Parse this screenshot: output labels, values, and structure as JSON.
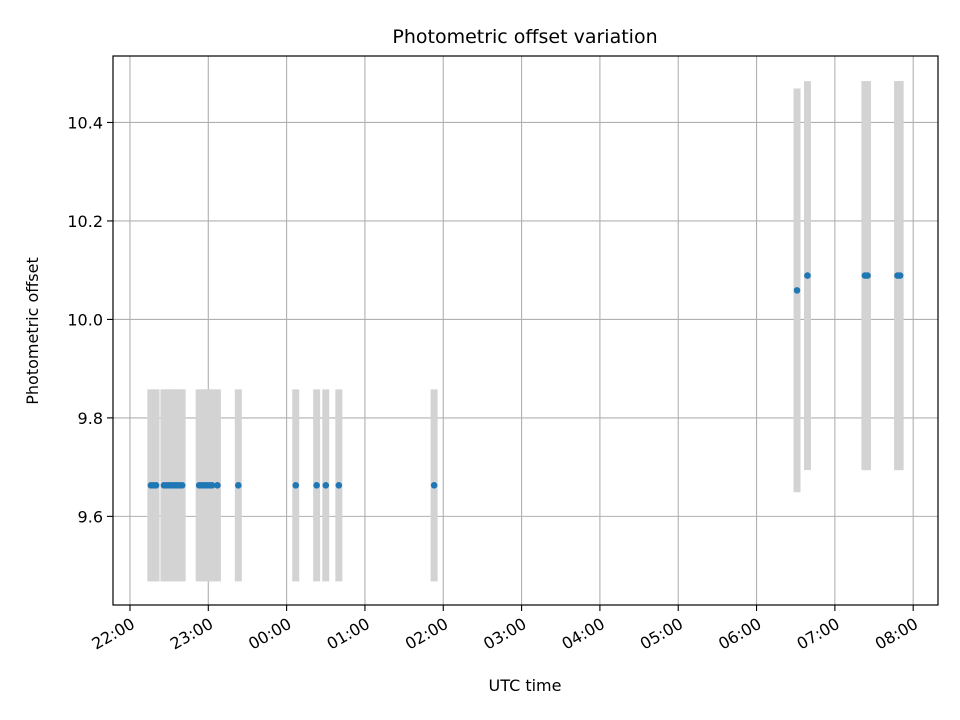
{
  "chart_data": {
    "type": "scatter",
    "title": "Photometric offset variation",
    "xlabel": "UTC time",
    "ylabel": "Photometric offset",
    "grid": true,
    "legend": "none",
    "colors": {
      "point": "#1f77b4",
      "errorbar": "#d3d3d3",
      "grid": "#b0b0b0"
    },
    "xlim": [
      "2000-01-01T21:47",
      "2000-01-02T08:19"
    ],
    "ylim": [
      9.42,
      10.535
    ],
    "x_ticks": [
      {
        "t": "2000-01-01T22:00",
        "label": "22:00"
      },
      {
        "t": "2000-01-01T23:00",
        "label": "23:00"
      },
      {
        "t": "2000-01-02T00:00",
        "label": "00:00"
      },
      {
        "t": "2000-01-02T01:00",
        "label": "01:00"
      },
      {
        "t": "2000-01-02T02:00",
        "label": "02:00"
      },
      {
        "t": "2000-01-02T03:00",
        "label": "03:00"
      },
      {
        "t": "2000-01-02T04:00",
        "label": "04:00"
      },
      {
        "t": "2000-01-02T05:00",
        "label": "05:00"
      },
      {
        "t": "2000-01-02T06:00",
        "label": "06:00"
      },
      {
        "t": "2000-01-02T07:00",
        "label": "07:00"
      },
      {
        "t": "2000-01-02T08:00",
        "label": "08:00"
      }
    ],
    "y_ticks": [
      {
        "v": 9.6,
        "label": "9.6"
      },
      {
        "v": 9.8,
        "label": "9.8"
      },
      {
        "v": 10.0,
        "label": "10.0"
      },
      {
        "v": 10.2,
        "label": "10.2"
      },
      {
        "v": 10.4,
        "label": "10.4"
      }
    ],
    "points": [
      {
        "t": "2000-01-01T22:16",
        "y": 9.663,
        "err": 0.195
      },
      {
        "t": "2000-01-01T22:18",
        "y": 9.663,
        "err": 0.195
      },
      {
        "t": "2000-01-01T22:20",
        "y": 9.663,
        "err": 0.195
      },
      {
        "t": "2000-01-01T22:26",
        "y": 9.663,
        "err": 0.195
      },
      {
        "t": "2000-01-01T22:28",
        "y": 9.663,
        "err": 0.195
      },
      {
        "t": "2000-01-01T22:30",
        "y": 9.663,
        "err": 0.195
      },
      {
        "t": "2000-01-01T22:32",
        "y": 9.663,
        "err": 0.195
      },
      {
        "t": "2000-01-01T22:34",
        "y": 9.663,
        "err": 0.195
      },
      {
        "t": "2000-01-01T22:36",
        "y": 9.663,
        "err": 0.195
      },
      {
        "t": "2000-01-01T22:38",
        "y": 9.663,
        "err": 0.195
      },
      {
        "t": "2000-01-01T22:40",
        "y": 9.663,
        "err": 0.195
      },
      {
        "t": "2000-01-01T22:53",
        "y": 9.663,
        "err": 0.195
      },
      {
        "t": "2000-01-01T22:55",
        "y": 9.663,
        "err": 0.195
      },
      {
        "t": "2000-01-01T22:57",
        "y": 9.663,
        "err": 0.195
      },
      {
        "t": "2000-01-01T22:59",
        "y": 9.663,
        "err": 0.195
      },
      {
        "t": "2000-01-01T23:01",
        "y": 9.663,
        "err": 0.195
      },
      {
        "t": "2000-01-01T23:03",
        "y": 9.663,
        "err": 0.195
      },
      {
        "t": "2000-01-01T23:07",
        "y": 9.663,
        "err": 0.195
      },
      {
        "t": "2000-01-01T23:23",
        "y": 9.663,
        "err": 0.195
      },
      {
        "t": "2000-01-02T00:07",
        "y": 9.663,
        "err": 0.195
      },
      {
        "t": "2000-01-02T00:23",
        "y": 9.663,
        "err": 0.195
      },
      {
        "t": "2000-01-02T00:30",
        "y": 9.663,
        "err": 0.195
      },
      {
        "t": "2000-01-02T00:40",
        "y": 9.663,
        "err": 0.195
      },
      {
        "t": "2000-01-02T01:53",
        "y": 9.663,
        "err": 0.195
      },
      {
        "t": "2000-01-02T06:31",
        "y": 10.059,
        "err": 0.41
      },
      {
        "t": "2000-01-02T06:39",
        "y": 10.089,
        "err": 0.395
      },
      {
        "t": "2000-01-02T07:23",
        "y": 10.089,
        "err": 0.395
      },
      {
        "t": "2000-01-02T07:25",
        "y": 10.089,
        "err": 0.395
      },
      {
        "t": "2000-01-02T07:48",
        "y": 10.089,
        "err": 0.395
      },
      {
        "t": "2000-01-02T07:50",
        "y": 10.089,
        "err": 0.395
      }
    ]
  }
}
